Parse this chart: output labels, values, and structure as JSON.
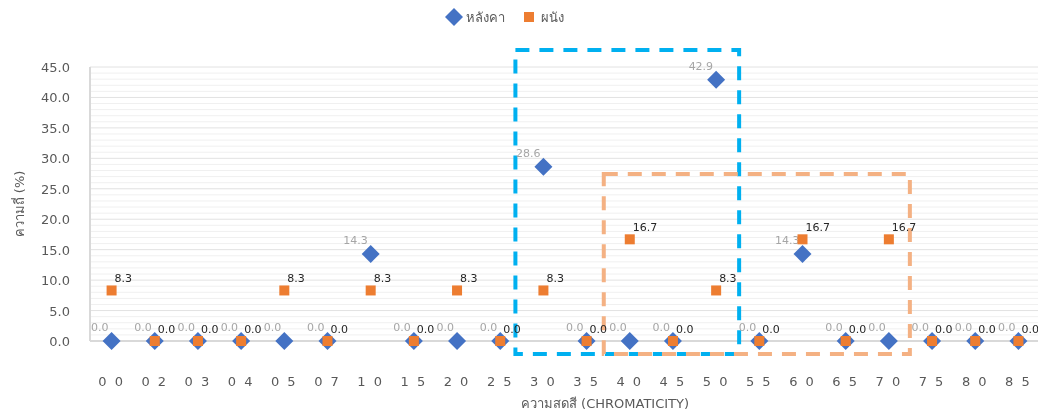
{
  "chart_data": {
    "type": "scatter",
    "xlabel": "ความสดสี (CHROMATICITY)",
    "ylabel": "ความถี่ (%)",
    "categories": [
      "0 0",
      "0 2",
      "0 3",
      "0 4",
      "0 5",
      "0 7",
      "1 0",
      "1 5",
      "2 0",
      "2 5",
      "3 0",
      "3 5",
      "4 0",
      "4 5",
      "5 0",
      "5 5",
      "6 0",
      "6 5",
      "7 0",
      "7 5",
      "8 0",
      "8 5"
    ],
    "series": [
      {
        "name": "หลังคา",
        "color": "#4472c4",
        "marker": "diamond",
        "values": [
          0,
          0,
          0,
          0,
          0,
          0,
          14.3,
          0,
          0,
          0,
          28.6,
          0,
          0,
          0,
          42.9,
          0,
          14.3,
          0,
          0,
          0,
          0,
          0
        ],
        "value_labels": [
          "0.0",
          "0.0",
          "0.0",
          "0.0",
          "0.0",
          "0.0",
          "14.3",
          "0.0",
          "0.0",
          "0.0",
          "28.6",
          "0.0",
          "0.0",
          "0.0",
          "42.9",
          "0.0",
          "14.3",
          "0.0",
          "0.0",
          "0.0",
          "0.0",
          "0.0"
        ]
      },
      {
        "name": "ผนัง",
        "color": "#ed7d31",
        "marker": "square",
        "values": [
          8.3,
          0,
          0,
          0,
          8.3,
          0,
          8.3,
          0,
          8.3,
          0,
          8.3,
          0,
          16.7,
          0,
          8.3,
          0,
          16.7,
          0,
          16.7,
          0,
          0,
          0
        ],
        "value_labels": [
          "8.3",
          "0.0",
          "0.0",
          "0.0",
          "8.3",
          "0.0",
          "8.3",
          "0.0",
          "8.3",
          "0.0",
          "8.3",
          "0.0",
          "16.7",
          "0.0",
          "8.3",
          "0.0",
          "16.7",
          "0.0",
          "16.7",
          "0.0",
          "0.0",
          "0.0"
        ]
      }
    ],
    "ylim": [
      0,
      45
    ],
    "yticks": [
      {
        "value": 0,
        "label": "0.0"
      },
      {
        "value": 5,
        "label": "5.0"
      },
      {
        "value": 10,
        "label": "10.0"
      },
      {
        "value": 15,
        "label": "15.0"
      },
      {
        "value": 20,
        "label": "20.0"
      },
      {
        "value": 25,
        "label": "25.0"
      },
      {
        "value": 30,
        "label": "30.0"
      },
      {
        "value": 35,
        "label": "35.0"
      },
      {
        "value": 40,
        "label": "40.0"
      },
      {
        "value": 45,
        "label": "45.0"
      }
    ],
    "grid": "y",
    "legend": "top"
  }
}
